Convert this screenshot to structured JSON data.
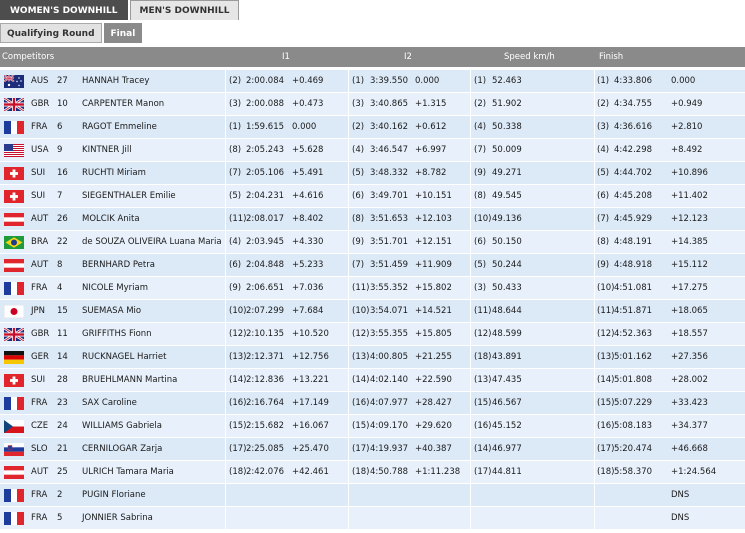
{
  "tabs": [
    "WOMEN'S DOWNHILL",
    "MEN'S DOWNHILL"
  ],
  "subtabs": [
    "Qualifying Round",
    "Final"
  ],
  "headers": {
    "competitors": "Competitors",
    "i1": "I1",
    "i2": "I2",
    "speed": "Speed km/h",
    "finish": "Finish"
  },
  "rows": [
    {
      "flag": "aus",
      "nat": "AUS",
      "bib": "27",
      "name": "HANNAH Tracey",
      "i1_rank": "(2)",
      "i1_time": "2:00.084",
      "i1_diff": "+0.469",
      "i2_rank": "(1)",
      "i2_time": "3:39.550",
      "i2_diff": "0.000",
      "sp_rank": "(1)",
      "speed": "52.463",
      "f_rank": "(1)",
      "f_time": "4:33.806",
      "f_diff": "0.000"
    },
    {
      "flag": "gbr",
      "nat": "GBR",
      "bib": "10",
      "name": "CARPENTER Manon",
      "i1_rank": "(3)",
      "i1_time": "2:00.088",
      "i1_diff": "+0.473",
      "i2_rank": "(3)",
      "i2_time": "3:40.865",
      "i2_diff": "+1.315",
      "sp_rank": "(2)",
      "speed": "51.902",
      "f_rank": "(2)",
      "f_time": "4:34.755",
      "f_diff": "+0.949"
    },
    {
      "flag": "fra",
      "nat": "FRA",
      "bib": "6",
      "name": "RAGOT Emmeline",
      "i1_rank": "(1)",
      "i1_time": "1:59.615",
      "i1_diff": "0.000",
      "i2_rank": "(2)",
      "i2_time": "3:40.162",
      "i2_diff": "+0.612",
      "sp_rank": "(4)",
      "speed": "50.338",
      "f_rank": "(3)",
      "f_time": "4:36.616",
      "f_diff": "+2.810"
    },
    {
      "flag": "usa",
      "nat": "USA",
      "bib": "9",
      "name": "KINTNER Jill",
      "i1_rank": "(8)",
      "i1_time": "2:05.243",
      "i1_diff": "+5.628",
      "i2_rank": "(4)",
      "i2_time": "3:46.547",
      "i2_diff": "+6.997",
      "sp_rank": "(7)",
      "speed": "50.009",
      "f_rank": "(4)",
      "f_time": "4:42.298",
      "f_diff": "+8.492"
    },
    {
      "flag": "sui",
      "nat": "SUI",
      "bib": "16",
      "name": "RUCHTI Miriam",
      "i1_rank": "(7)",
      "i1_time": "2:05.106",
      "i1_diff": "+5.491",
      "i2_rank": "(5)",
      "i2_time": "3:48.332",
      "i2_diff": "+8.782",
      "sp_rank": "(9)",
      "speed": "49.271",
      "f_rank": "(5)",
      "f_time": "4:44.702",
      "f_diff": "+10.896"
    },
    {
      "flag": "sui",
      "nat": "SUI",
      "bib": "7",
      "name": "SIEGENTHALER Emilie",
      "i1_rank": "(5)",
      "i1_time": "2:04.231",
      "i1_diff": "+4.616",
      "i2_rank": "(6)",
      "i2_time": "3:49.701",
      "i2_diff": "+10.151",
      "sp_rank": "(8)",
      "speed": "49.545",
      "f_rank": "(6)",
      "f_time": "4:45.208",
      "f_diff": "+11.402"
    },
    {
      "flag": "aut",
      "nat": "AUT",
      "bib": "26",
      "name": "MOLCIK Anita",
      "i1_rank": "(11)",
      "i1_time": "2:08.017",
      "i1_diff": "+8.402",
      "i2_rank": "(8)",
      "i2_time": "3:51.653",
      "i2_diff": "+12.103",
      "sp_rank": "(10)",
      "speed": "49.136",
      "f_rank": "(7)",
      "f_time": "4:45.929",
      "f_diff": "+12.123"
    },
    {
      "flag": "bra",
      "nat": "BRA",
      "bib": "22",
      "name": "de SOUZA OLIVEIRA Luana Maria",
      "i1_rank": "(4)",
      "i1_time": "2:03.945",
      "i1_diff": "+4.330",
      "i2_rank": "(9)",
      "i2_time": "3:51.701",
      "i2_diff": "+12.151",
      "sp_rank": "(6)",
      "speed": "50.150",
      "f_rank": "(8)",
      "f_time": "4:48.191",
      "f_diff": "+14.385"
    },
    {
      "flag": "aut",
      "nat": "AUT",
      "bib": "8",
      "name": "BERNHARD Petra",
      "i1_rank": "(6)",
      "i1_time": "2:04.848",
      "i1_diff": "+5.233",
      "i2_rank": "(7)",
      "i2_time": "3:51.459",
      "i2_diff": "+11.909",
      "sp_rank": "(5)",
      "speed": "50.244",
      "f_rank": "(9)",
      "f_time": "4:48.918",
      "f_diff": "+15.112"
    },
    {
      "flag": "fra",
      "nat": "FRA",
      "bib": "4",
      "name": "NICOLE Myriam",
      "i1_rank": "(9)",
      "i1_time": "2:06.651",
      "i1_diff": "+7.036",
      "i2_rank": "(11)",
      "i2_time": "3:55.352",
      "i2_diff": "+15.802",
      "sp_rank": "(3)",
      "speed": "50.433",
      "f_rank": "(10)",
      "f_time": "4:51.081",
      "f_diff": "+17.275"
    },
    {
      "flag": "jpn",
      "nat": "JPN",
      "bib": "15",
      "name": "SUEMASA Mio",
      "i1_rank": "(10)",
      "i1_time": "2:07.299",
      "i1_diff": "+7.684",
      "i2_rank": "(10)",
      "i2_time": "3:54.071",
      "i2_diff": "+14.521",
      "sp_rank": "(11)",
      "speed": "48.644",
      "f_rank": "(11)",
      "f_time": "4:51.871",
      "f_diff": "+18.065"
    },
    {
      "flag": "gbr",
      "nat": "GBR",
      "bib": "11",
      "name": "GRIFFITHS Fionn",
      "i1_rank": "(12)",
      "i1_time": "2:10.135",
      "i1_diff": "+10.520",
      "i2_rank": "(12)",
      "i2_time": "3:55.355",
      "i2_diff": "+15.805",
      "sp_rank": "(12)",
      "speed": "48.599",
      "f_rank": "(12)",
      "f_time": "4:52.363",
      "f_diff": "+18.557"
    },
    {
      "flag": "ger",
      "nat": "GER",
      "bib": "14",
      "name": "RUCKNAGEL Harriet",
      "i1_rank": "(13)",
      "i1_time": "2:12.371",
      "i1_diff": "+12.756",
      "i2_rank": "(13)",
      "i2_time": "4:00.805",
      "i2_diff": "+21.255",
      "sp_rank": "(18)",
      "speed": "43.891",
      "f_rank": "(13)",
      "f_time": "5:01.162",
      "f_diff": "+27.356"
    },
    {
      "flag": "sui",
      "nat": "SUI",
      "bib": "28",
      "name": "BRUEHLMANN Martina",
      "i1_rank": "(14)",
      "i1_time": "2:12.836",
      "i1_diff": "+13.221",
      "i2_rank": "(14)",
      "i2_time": "4:02.140",
      "i2_diff": "+22.590",
      "sp_rank": "(13)",
      "speed": "47.435",
      "f_rank": "(14)",
      "f_time": "5:01.808",
      "f_diff": "+28.002"
    },
    {
      "flag": "fra",
      "nat": "FRA",
      "bib": "23",
      "name": "SAX Caroline",
      "i1_rank": "(16)",
      "i1_time": "2:16.764",
      "i1_diff": "+17.149",
      "i2_rank": "(16)",
      "i2_time": "4:07.977",
      "i2_diff": "+28.427",
      "sp_rank": "(15)",
      "speed": "46.567",
      "f_rank": "(15)",
      "f_time": "5:07.229",
      "f_diff": "+33.423"
    },
    {
      "flag": "cze",
      "nat": "CZE",
      "bib": "24",
      "name": "WILLIAMS Gabriela",
      "i1_rank": "(15)",
      "i1_time": "2:15.682",
      "i1_diff": "+16.067",
      "i2_rank": "(15)",
      "i2_time": "4:09.170",
      "i2_diff": "+29.620",
      "sp_rank": "(16)",
      "speed": "45.152",
      "f_rank": "(16)",
      "f_time": "5:08.183",
      "f_diff": "+34.377"
    },
    {
      "flag": "slo",
      "nat": "SLO",
      "bib": "21",
      "name": "CERNILOGAR Zarja",
      "i1_rank": "(17)",
      "i1_time": "2:25.085",
      "i1_diff": "+25.470",
      "i2_rank": "(17)",
      "i2_time": "4:19.937",
      "i2_diff": "+40.387",
      "sp_rank": "(14)",
      "speed": "46.977",
      "f_rank": "(17)",
      "f_time": "5:20.474",
      "f_diff": "+46.668"
    },
    {
      "flag": "aut",
      "nat": "AUT",
      "bib": "25",
      "name": "ULRICH Tamara Maria",
      "i1_rank": "(18)",
      "i1_time": "2:42.076",
      "i1_diff": "+42.461",
      "i2_rank": "(18)",
      "i2_time": "4:50.788",
      "i2_diff": "+1:11.238",
      "sp_rank": "(17)",
      "speed": "44.811",
      "f_rank": "(18)",
      "f_time": "5:58.370",
      "f_diff": "+1:24.564"
    },
    {
      "flag": "fra",
      "nat": "FRA",
      "bib": "2",
      "name": "PUGIN Floriane",
      "i1_rank": "",
      "i1_time": "",
      "i1_diff": "",
      "i2_rank": "",
      "i2_time": "",
      "i2_diff": "",
      "sp_rank": "",
      "speed": "",
      "f_rank": "",
      "f_time": "",
      "f_diff": "DNS"
    },
    {
      "flag": "fra",
      "nat": "FRA",
      "bib": "5",
      "name": "JONNIER Sabrina",
      "i1_rank": "",
      "i1_time": "",
      "i1_diff": "",
      "i2_rank": "",
      "i2_time": "",
      "i2_diff": "",
      "sp_rank": "",
      "speed": "",
      "f_rank": "",
      "f_time": "",
      "f_diff": "DNS"
    }
  ]
}
